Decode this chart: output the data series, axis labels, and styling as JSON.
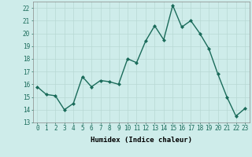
{
  "x": [
    0,
    1,
    2,
    3,
    4,
    5,
    6,
    7,
    8,
    9,
    10,
    11,
    12,
    13,
    14,
    15,
    16,
    17,
    18,
    19,
    20,
    21,
    22,
    23
  ],
  "y": [
    15.8,
    15.2,
    15.1,
    14.0,
    14.5,
    16.6,
    15.8,
    16.3,
    16.2,
    16.0,
    18.0,
    17.7,
    19.4,
    20.6,
    19.5,
    22.2,
    20.5,
    21.0,
    20.0,
    18.8,
    16.8,
    15.0,
    13.5,
    14.1
  ],
  "line_color": "#1a6b5a",
  "marker": "D",
  "marker_size": 2.0,
  "linewidth": 1.0,
  "bg_color": "#ceecea",
  "grid_color": "#b8d8d4",
  "xlabel": "Humidex (Indice chaleur)",
  "xlim": [
    -0.5,
    23.5
  ],
  "ylim": [
    13,
    22.5
  ],
  "yticks": [
    13,
    14,
    15,
    16,
    17,
    18,
    19,
    20,
    21,
    22
  ],
  "xticks": [
    0,
    1,
    2,
    3,
    4,
    5,
    6,
    7,
    8,
    9,
    10,
    11,
    12,
    13,
    14,
    15,
    16,
    17,
    18,
    19,
    20,
    21,
    22,
    23
  ],
  "xlabel_fontsize": 6.5,
  "tick_fontsize": 5.5
}
